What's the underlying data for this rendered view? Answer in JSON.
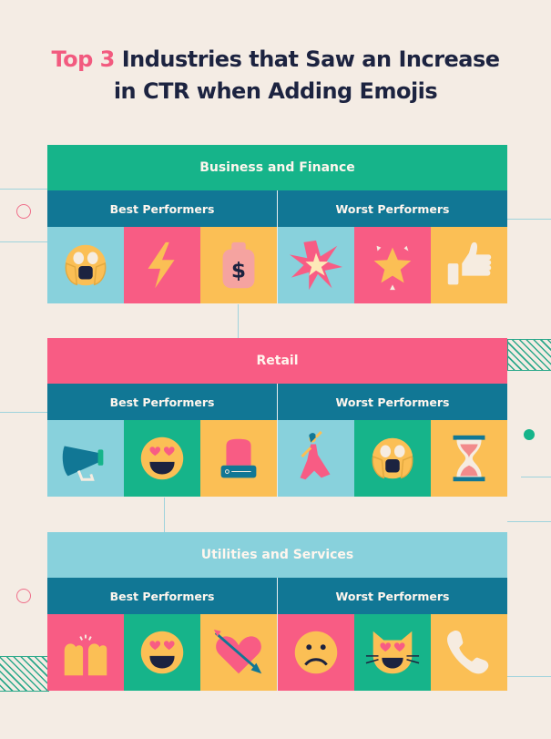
{
  "title": {
    "highlight": "Top 3",
    "line1_rest": " Industries that Saw an Increase",
    "line2": "in CTR when Adding Emojis"
  },
  "colors": {
    "background": "#f4ece4",
    "green": "#16b48a",
    "teal": "#117795",
    "light_blue": "#88d1dc",
    "pink": "#f85c84",
    "yellow": "#fbbf55",
    "navy": "#1c2340"
  },
  "sections": [
    {
      "title": "Business and Finance",
      "header_color": "#16b48a",
      "best_label": "Best Performers",
      "worst_label": "Worst Performers",
      "best": [
        {
          "icon": "face-screaming-icon",
          "bg": "#88d1dc"
        },
        {
          "icon": "lightning-icon",
          "bg": "#f85c84"
        },
        {
          "icon": "money-bag-icon",
          "bg": "#fbbf55"
        }
      ],
      "worst": [
        {
          "icon": "collision-icon",
          "bg": "#88d1dc"
        },
        {
          "icon": "glowing-star-icon",
          "bg": "#f85c84"
        },
        {
          "icon": "thumbs-up-icon",
          "bg": "#fbbf55"
        }
      ]
    },
    {
      "title": "Retail",
      "header_color": "#f85c84",
      "best_label": "Best Performers",
      "worst_label": "Worst Performers",
      "best": [
        {
          "icon": "megaphone-icon",
          "bg": "#88d1dc"
        },
        {
          "icon": "heart-eyes-face-icon",
          "bg": "#16b48a"
        },
        {
          "icon": "police-light-icon",
          "bg": "#fbbf55"
        }
      ],
      "worst": [
        {
          "icon": "dancer-icon",
          "bg": "#88d1dc"
        },
        {
          "icon": "face-screaming-icon",
          "bg": "#16b48a"
        },
        {
          "icon": "hourglass-icon",
          "bg": "#fbbf55"
        }
      ]
    },
    {
      "title": "Utilities and Services",
      "header_color": "#88d1dc",
      "best_label": "Best Performers",
      "worst_label": "Worst Performers",
      "best": [
        {
          "icon": "raised-hands-icon",
          "bg": "#f85c84"
        },
        {
          "icon": "heart-eyes-face-icon",
          "bg": "#16b48a"
        },
        {
          "icon": "heart-arrow-icon",
          "bg": "#fbbf55"
        }
      ],
      "worst": [
        {
          "icon": "frowning-face-icon",
          "bg": "#f85c84"
        },
        {
          "icon": "heart-eyes-cat-icon",
          "bg": "#16b48a"
        },
        {
          "icon": "telephone-icon",
          "bg": "#fbbf55"
        }
      ]
    }
  ]
}
